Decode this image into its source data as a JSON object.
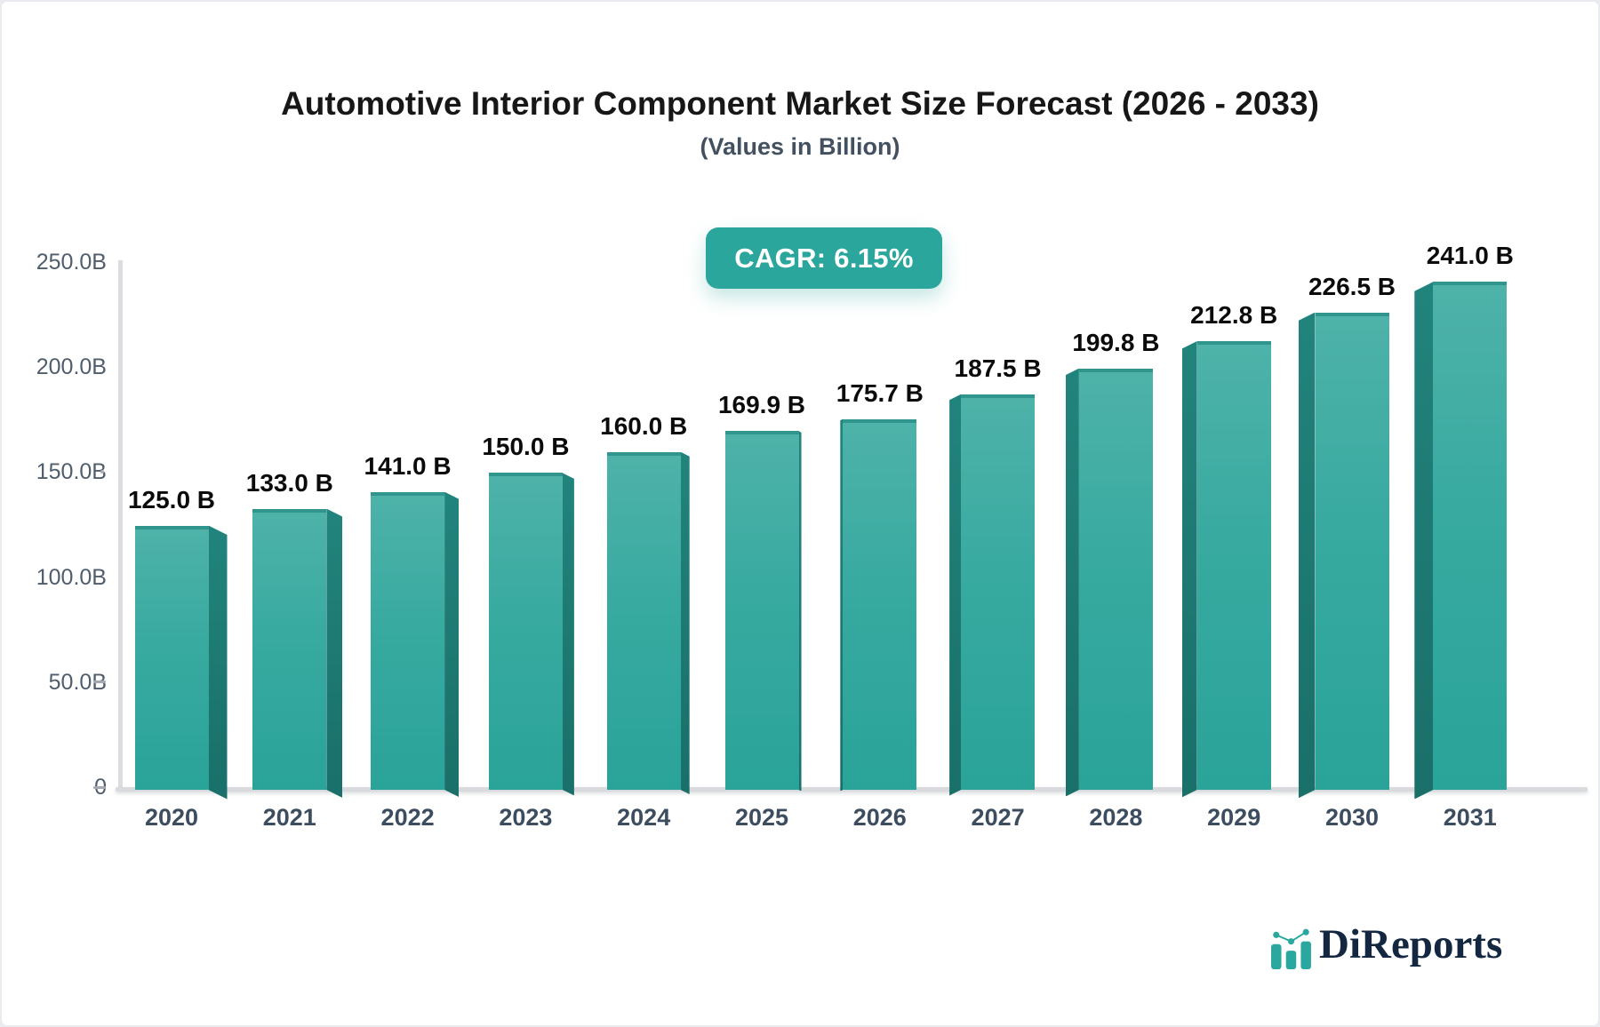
{
  "chart_data": {
    "type": "bar",
    "title": "Automotive Interior Component Market Size Forecast (2026 - 2033)",
    "subtitle": "(Values in Billion)",
    "cagr_label": "CAGR: 6.15%",
    "categories": [
      "2020",
      "2021",
      "2022",
      "2023",
      "2024",
      "2025",
      "2026",
      "2027",
      "2028",
      "2029",
      "2030",
      "2031"
    ],
    "values": [
      125.0,
      133.0,
      141.0,
      150.0,
      160.0,
      169.9,
      175.7,
      187.5,
      199.8,
      212.8,
      226.5,
      241.0
    ],
    "value_labels": [
      "125.0 B",
      "133.0 B",
      "141.0 B",
      "150.0 B",
      "160.0 B",
      "169.9 B",
      "175.7 B",
      "187.5 B",
      "199.8 B",
      "212.8 B",
      "226.5 B",
      "241.0 B"
    ],
    "xlabel": "",
    "ylabel": "",
    "ylim": [
      0,
      250
    ],
    "grid": false,
    "legend": "none",
    "y_ticks": [
      {
        "label": "250.0B",
        "value": 250,
        "marker": "none"
      },
      {
        "label": "200.0B",
        "value": 200,
        "marker": "none"
      },
      {
        "label": "150.0B",
        "value": 150,
        "marker": "dot"
      },
      {
        "label": "100.0B",
        "value": 100,
        "marker": "none"
      },
      {
        "label": "50.0B",
        "value": 50,
        "marker": "dash"
      },
      {
        "label": "0",
        "value": 0,
        "marker": "dash"
      }
    ],
    "colors": {
      "bar_front_top": "#4eb2a9",
      "bar_front_bottom": "#2aa399",
      "bar_top_edge": "#2f958d",
      "bar_side": "#1e7c75",
      "accent_badge": "#2aa69c",
      "axis": "#d9dade",
      "value_label": "#0b0b0b",
      "year_label": "#3d4d60",
      "tick_label": "#4f5d6c"
    }
  },
  "branding": {
    "name": "DiReports"
  }
}
